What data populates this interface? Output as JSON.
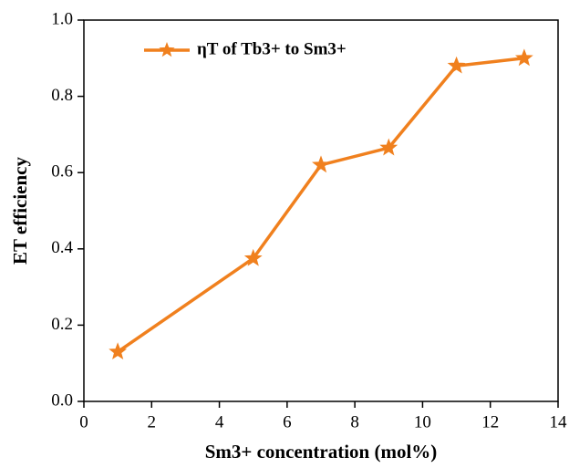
{
  "chart_data": {
    "type": "line",
    "x_label": "Sm3+ concentration (mol%)",
    "y_label": "ET efficiency",
    "x": [
      1,
      5,
      7,
      9,
      11,
      13
    ],
    "series": [
      {
        "name": "ηT of Tb3+ to Sm3+",
        "color": "#f0801e",
        "values": [
          0.13,
          0.375,
          0.62,
          0.665,
          0.88,
          0.9
        ]
      }
    ],
    "xlim": [
      0,
      14
    ],
    "xticks": [
      0,
      2,
      4,
      6,
      8,
      10,
      12,
      14
    ],
    "ylim": [
      0,
      1.0
    ],
    "yticks": [
      {
        "value": 0,
        "label": "0.0"
      },
      0.2,
      0.4,
      0.6,
      0.8,
      {
        "value": 1.0,
        "label": "1.0"
      }
    ],
    "marker": "star",
    "grid": false,
    "legend_position": "upper left"
  }
}
